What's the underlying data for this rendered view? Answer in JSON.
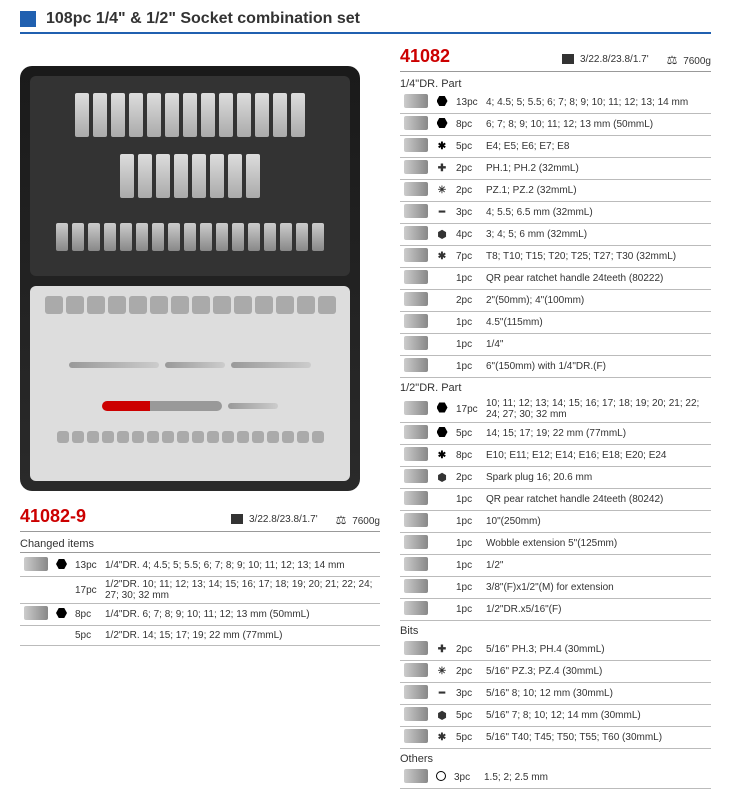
{
  "title": "108pc 1/4\" & 1/2\" Socket combination set",
  "product_main": {
    "code": "41082",
    "box_dim": "3/22.8/23.8/1.7'",
    "weight": "7600g",
    "sections": [
      {
        "label": "1/4\"DR. Part",
        "rows": [
          {
            "sym": "hex",
            "qty": "13pc",
            "desc": "4; 4.5; 5; 5.5; 6; 7; 8; 9; 10; 11; 12; 13; 14 mm"
          },
          {
            "sym": "hex",
            "qty": "8pc",
            "desc": "6; 7; 8; 9; 10; 11; 12; 13 mm (50mmL)"
          },
          {
            "sym": "torx-o",
            "qty": "5pc",
            "desc": "E4; E5; E6; E7; E8"
          },
          {
            "sym": "ph",
            "qty": "2pc",
            "desc": "PH.1; PH.2 (32mmL)"
          },
          {
            "sym": "pz",
            "qty": "2pc",
            "desc": "PZ.1; PZ.2 (32mmL)"
          },
          {
            "sym": "sl",
            "qty": "3pc",
            "desc": "4; 5.5; 6.5 mm (32mmL)"
          },
          {
            "sym": "hexkey",
            "qty": "4pc",
            "desc": "3; 4; 5; 6 mm (32mmL)"
          },
          {
            "sym": "torx",
            "qty": "7pc",
            "desc": "T8; T10; T15; T20; T25; T27; T30 (32mmL)"
          },
          {
            "sym": "",
            "qty": "1pc",
            "desc": "QR pear ratchet handle 24teeth (80222)"
          },
          {
            "sym": "",
            "qty": "2pc",
            "desc": "2\"(50mm); 4\"(100mm)"
          },
          {
            "sym": "",
            "qty": "1pc",
            "desc": "4.5\"(115mm)"
          },
          {
            "sym": "",
            "qty": "1pc",
            "desc": "1/4\""
          },
          {
            "sym": "",
            "qty": "1pc",
            "desc": "6\"(150mm) with 1/4\"DR.(F)"
          }
        ]
      },
      {
        "label": "1/2\"DR. Part",
        "rows": [
          {
            "sym": "hex",
            "qty": "17pc",
            "desc": "10; 11; 12; 13; 14; 15; 16; 17; 18; 19; 20; 21; 22; 24; 27; 30; 32 mm"
          },
          {
            "sym": "hex",
            "qty": "5pc",
            "desc": "14; 15; 17; 19; 22 mm (77mmL)"
          },
          {
            "sym": "torx-o",
            "qty": "8pc",
            "desc": "E10; E11; E12; E14; E16; E18; E20; E24"
          },
          {
            "sym": "hexkey",
            "qty": "2pc",
            "desc": "Spark plug 16; 20.6 mm"
          },
          {
            "sym": "",
            "qty": "1pc",
            "desc": "QR pear ratchet handle 24teeth (80242)"
          },
          {
            "sym": "",
            "qty": "1pc",
            "desc": "10\"(250mm)"
          },
          {
            "sym": "",
            "qty": "1pc",
            "desc": "Wobble extension 5\"(125mm)"
          },
          {
            "sym": "",
            "qty": "1pc",
            "desc": "1/2\""
          },
          {
            "sym": "",
            "qty": "1pc",
            "desc": "3/8\"(F)x1/2\"(M) for extension"
          },
          {
            "sym": "",
            "qty": "1pc",
            "desc": "1/2\"DR.x5/16\"(F)"
          }
        ]
      },
      {
        "label": "Bits",
        "rows": [
          {
            "sym": "ph",
            "qty": "2pc",
            "desc": "5/16\" PH.3; PH.4 (30mmL)"
          },
          {
            "sym": "pz",
            "qty": "2pc",
            "desc": "5/16\" PZ.3; PZ.4 (30mmL)"
          },
          {
            "sym": "sl",
            "qty": "3pc",
            "desc": "5/16\" 8; 10; 12 mm (30mmL)"
          },
          {
            "sym": "hexkey",
            "qty": "5pc",
            "desc": "5/16\" 7; 8; 10; 12; 14 mm (30mmL)"
          },
          {
            "sym": "torx",
            "qty": "5pc",
            "desc": "5/16\" T40; T45; T50; T55; T60 (30mmL)"
          }
        ]
      },
      {
        "label": "Others",
        "rows": [
          {
            "sym": "circ",
            "qty": "3pc",
            "desc": "1.5; 2; 2.5 mm"
          }
        ]
      }
    ]
  },
  "product_alt": {
    "code": "41082-9",
    "box_dim": "3/22.8/23.8/1.7'",
    "weight": "7600g",
    "changed_label": "Changed items",
    "rows": [
      {
        "sym": "hex",
        "qty": "13pc",
        "desc": "1/4\"DR. 4; 4.5; 5; 5.5; 6; 7; 8; 9; 10; 11; 12; 13; 14 mm"
      },
      {
        "sym": "hex",
        "qty": "17pc",
        "desc": "1/2\"DR. 10; 11; 12; 13; 14; 15; 16; 17; 18; 19; 20; 21; 22; 24; 27; 30; 32 mm"
      },
      {
        "sym": "hex",
        "qty": "8pc",
        "desc": "1/4\"DR. 6; 7; 8; 9; 10; 11; 12; 13 mm (50mmL)"
      },
      {
        "sym": "hex",
        "qty": "5pc",
        "desc": "1/2\"DR. 14; 15; 17; 19; 22 mm (77mmL)"
      }
    ]
  }
}
